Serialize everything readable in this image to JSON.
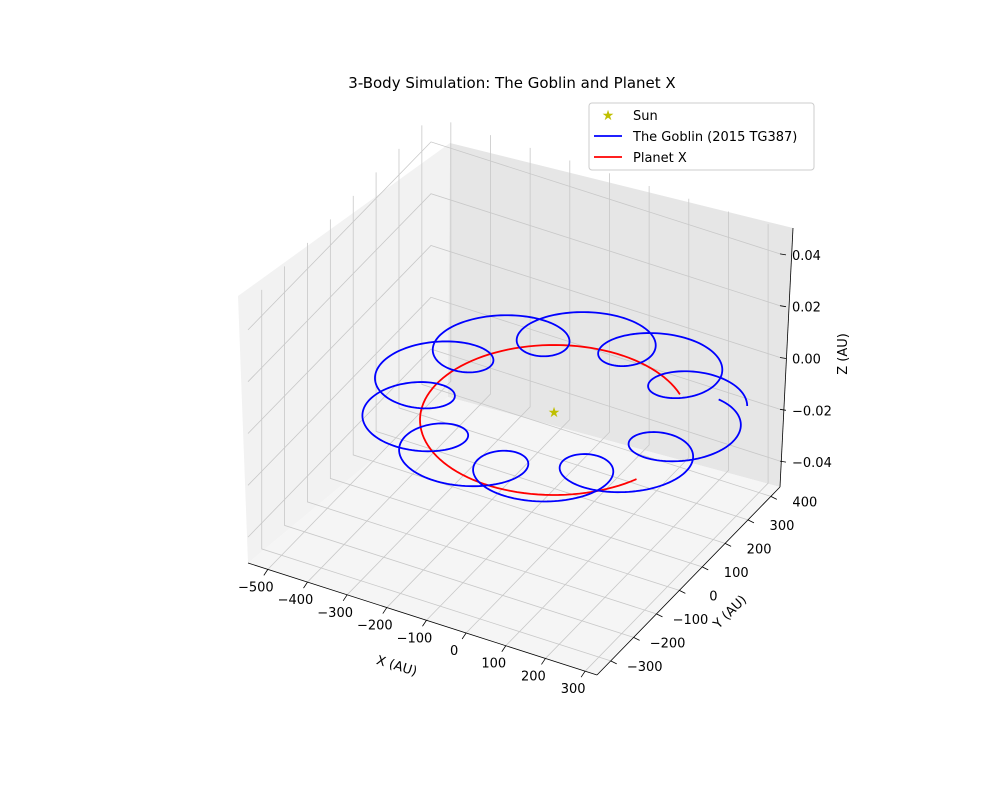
{
  "chart_data": {
    "type": "line",
    "projection": "3d",
    "title": "3-Body Simulation: The Goblin and Planet X",
    "xlabel": "X (AU)",
    "ylabel": "Y (AU)",
    "zlabel": "Z (AU)",
    "xlim": [
      -550,
      330
    ],
    "ylim": [
      -360,
      440
    ],
    "zlim": [
      -0.05,
      0.05
    ],
    "xticks": [
      "−500",
      "−400",
      "−300",
      "−200",
      "−100",
      "0",
      "100",
      "200",
      "300"
    ],
    "yticks": [
      "−300",
      "−200",
      "−100",
      "0",
      "100",
      "200",
      "300",
      "400"
    ],
    "zticks": [
      "−0.04",
      "−0.02",
      "0.00",
      "0.02",
      "0.04"
    ],
    "grid": true,
    "legend_position": "top-right",
    "series": [
      {
        "name": "Sun",
        "marker": "star",
        "color": "#bfbf00",
        "points": [
          [
            0,
            0,
            0
          ]
        ]
      },
      {
        "name": "The Goblin (2015 TG387)",
        "color": "#0000ff",
        "description_points": "epicyclic loops around a ~250 AU circle, z = 0",
        "z": 0
      },
      {
        "name": "Planet X",
        "color": "#ff0000",
        "orbit_radius_au": 270,
        "z": 0
      }
    ]
  }
}
